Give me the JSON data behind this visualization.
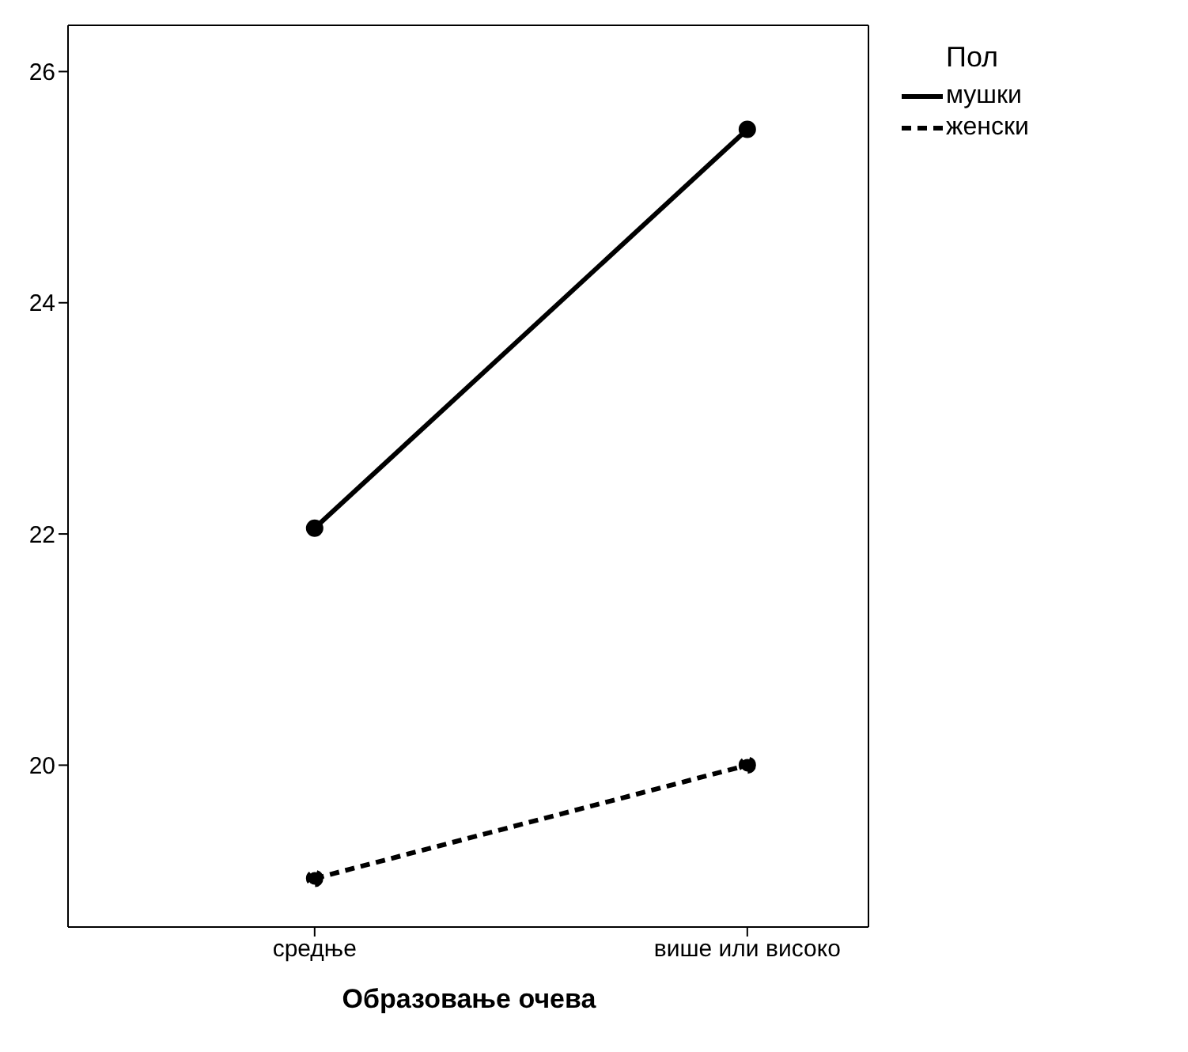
{
  "chart_data": {
    "type": "line",
    "xlabel": "Образовање очева",
    "legend_title": "Пол",
    "categories": [
      "средње",
      "више или високо"
    ],
    "series": [
      {
        "name": "мушки",
        "color": "#000000",
        "values": [
          22.05,
          25.5
        ],
        "line_style": "solid"
      },
      {
        "name": "женски",
        "color": "#000000",
        "values": [
          19.02,
          20.0
        ],
        "line_style": "dashed"
      }
    ],
    "ylim": [
      18.6,
      26.4
    ],
    "yticks": [
      20,
      22,
      24,
      26
    ],
    "grid": false,
    "legend": "top right",
    "marker": "circle"
  }
}
